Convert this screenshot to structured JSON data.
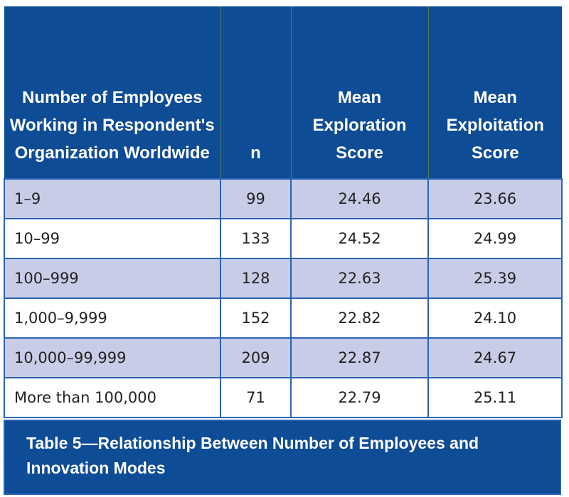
{
  "table": {
    "headers": [
      "Number of Employees Working in Respondent's Organization Worldwide",
      "n",
      "Mean Exploration Score",
      "Mean Exploitation Score"
    ],
    "rows": [
      {
        "size": "1–9",
        "n": "99",
        "exploration": "24.46",
        "exploitation": "23.66"
      },
      {
        "size": "10–99",
        "n": "133",
        "exploration": "24.52",
        "exploitation": "24.99"
      },
      {
        "size": "100–999",
        "n": "128",
        "exploration": "22.63",
        "exploitation": "25.39"
      },
      {
        "size": "1,000–9,999",
        "n": "152",
        "exploration": "22.82",
        "exploitation": "24.10"
      },
      {
        "size": "10,000–99,999",
        "n": "209",
        "exploration": "22.87",
        "exploitation": "24.67"
      },
      {
        "size": "More than 100,000",
        "n": "71",
        "exploration": "22.79",
        "exploitation": "25.11"
      }
    ]
  },
  "caption": "Table 5—Relationship Between Number of Employees and Innovation Modes",
  "colors": {
    "header_bg": "#0f4c96",
    "shaded_row": "#c8cce6",
    "border": "#2a63b2"
  }
}
